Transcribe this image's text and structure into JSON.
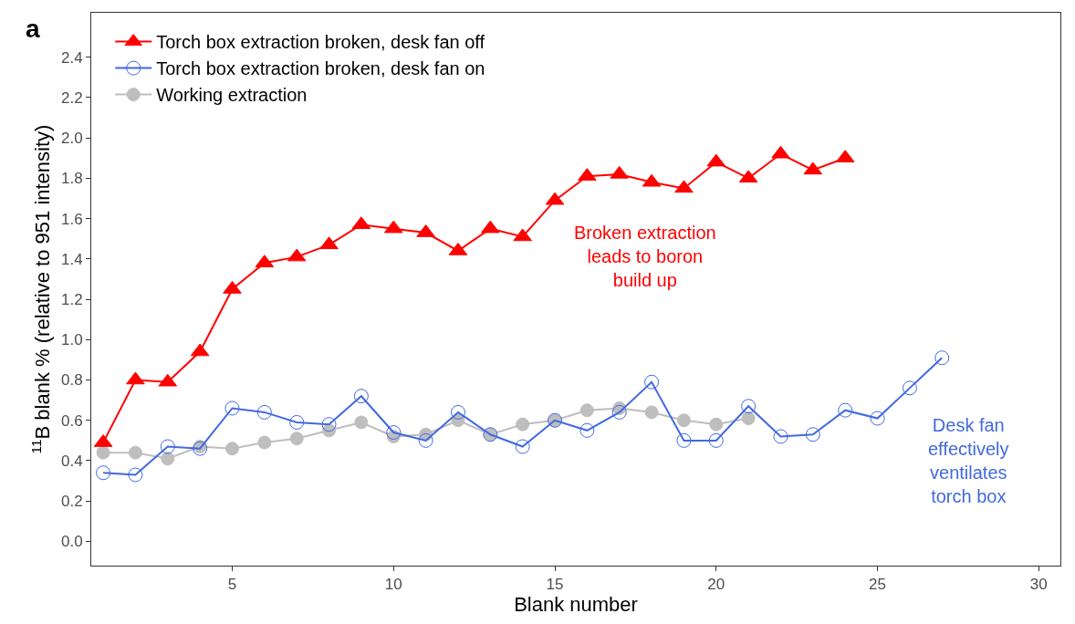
{
  "chart_data": {
    "type": "line",
    "xlabel": "Blank number",
    "ylabel": "$^{11}$B blank % (relative to 951 intensity)",
    "xlim": [
      0.63,
      30.67
    ],
    "xticks": [
      5,
      10,
      15,
      20,
      25,
      30
    ],
    "ylim": [
      -0.12,
      2.62
    ],
    "yticks": [
      {
        "value": 0,
        "label": "0.0"
      },
      0.2,
      0.4,
      0.6,
      0.8,
      {
        "value": 1,
        "label": "1.0"
      },
      1.2,
      1.4,
      1.6,
      1.8,
      {
        "value": 2,
        "label": "2.0"
      },
      2.2,
      2.4
    ],
    "legend": "top left",
    "series": [
      {
        "name": "Torch box extraction broken, desk fan off",
        "color": "#ff0000",
        "marker": "triangle",
        "x": [
          1,
          2,
          3,
          4,
          5,
          6,
          7,
          8,
          9,
          10,
          11,
          12,
          13,
          14,
          15,
          16,
          17,
          18,
          19,
          20,
          21,
          22,
          23,
          24
        ],
        "values": [
          0.49,
          0.8,
          0.79,
          0.94,
          1.25,
          1.38,
          1.41,
          1.47,
          1.57,
          1.55,
          1.53,
          1.44,
          1.55,
          1.51,
          1.69,
          1.81,
          1.82,
          1.78,
          1.75,
          1.88,
          1.8,
          1.92,
          1.84,
          1.9
        ]
      },
      {
        "name": "Torch box extraction broken, desk fan on",
        "color": "#4169e1",
        "marker": "circle-open",
        "x": [
          1,
          2,
          3,
          4,
          5,
          6,
          7,
          8,
          9,
          10,
          11,
          12,
          13,
          14,
          15,
          16,
          17,
          18,
          19,
          20,
          21,
          22,
          23,
          24,
          25,
          26,
          27
        ],
        "values": [
          0.34,
          0.33,
          0.47,
          0.46,
          0.66,
          0.64,
          0.59,
          0.58,
          0.72,
          0.54,
          0.5,
          0.64,
          0.53,
          0.47,
          0.6,
          0.55,
          0.64,
          0.79,
          0.5,
          0.5,
          0.67,
          0.52,
          0.53,
          0.65,
          0.61,
          0.76,
          0.91
        ]
      },
      {
        "name": "Working extraction",
        "color": "#bebebe",
        "marker": "circle",
        "x": [
          1,
          2,
          3,
          4,
          5,
          6,
          7,
          8,
          9,
          10,
          11,
          12,
          13,
          14,
          15,
          16,
          17,
          18,
          19,
          20,
          21
        ],
        "values": [
          0.44,
          0.44,
          0.41,
          0.47,
          0.46,
          0.49,
          0.51,
          0.55,
          0.59,
          0.52,
          0.53,
          0.6,
          0.53,
          0.58,
          0.6,
          0.65,
          0.66,
          0.64,
          0.6,
          0.58,
          0.61
        ]
      }
    ],
    "annotations": [
      "a",
      "Broken extraction\nleads to boron\nbuild up",
      "Desk fan\neffectively\nventilates\ntorch box"
    ]
  }
}
